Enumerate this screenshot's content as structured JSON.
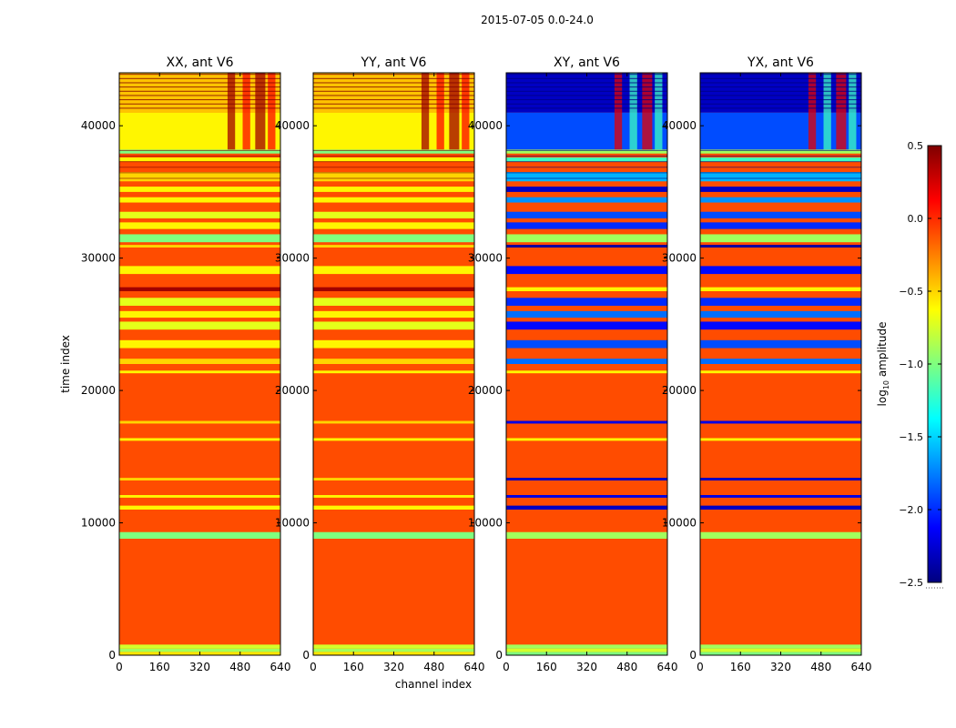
{
  "figure_title": "2015-07-05 0.0-24.0",
  "colors": {
    "background": "#ffffff",
    "base_red_orange": "#ff4500",
    "jet_stops": [
      "#00007f",
      "#0000ff",
      "#007fff",
      "#00ffff",
      "#7fff7f",
      "#ffff00",
      "#ff7f00",
      "#ff0000",
      "#7f0000"
    ]
  },
  "chart_data": {
    "type": "heatmap",
    "panels": [
      {
        "title": "XX, ant V6",
        "kind": "parallel"
      },
      {
        "title": "YY, ant V6",
        "kind": "parallel"
      },
      {
        "title": "XY, ant V6",
        "kind": "cross"
      },
      {
        "title": "YX, ant V6",
        "kind": "cross"
      }
    ],
    "xlabel": "channel index",
    "ylabel": "time index",
    "xlim": [
      0,
      640
    ],
    "ylim": [
      0,
      44000
    ],
    "xticks": [
      0,
      160,
      320,
      480,
      640
    ],
    "yticks": [
      0,
      10000,
      20000,
      30000,
      40000
    ],
    "xtick_labels": [
      "0",
      "160",
      "320",
      "480",
      "640"
    ],
    "ytick_labels": [
      "0",
      "10000",
      "20000",
      "30000",
      "40000"
    ],
    "colorbar": {
      "label_prefix": "log",
      "label_sub": "10",
      "label_suffix": " amplitude",
      "range": [
        -2.5,
        0.5
      ],
      "ticks": [
        -2.5,
        -2.0,
        -1.5,
        -1.0,
        -0.5,
        0.0,
        0.5
      ],
      "tick_labels": [
        "−2.5",
        "−2.0",
        "−1.5",
        "−1.0",
        "−0.5",
        "0.0",
        "0.5"
      ],
      "colormap": "jet"
    },
    "base_value": -0.1,
    "rfi_channel_ranges": [
      [
        430,
        460
      ],
      [
        490,
        520
      ],
      [
        540,
        580
      ],
      [
        590,
        620
      ]
    ],
    "segments": [
      {
        "t0": 0,
        "t1": 250,
        "parallel": -0.55,
        "cross": -1.0
      },
      {
        "t0": 250,
        "t1": 500,
        "parallel": -0.9,
        "cross": -0.75
      },
      {
        "t0": 500,
        "t1": 800,
        "parallel": -0.75,
        "cross": -0.9
      },
      {
        "t0": 8800,
        "t1": 9300,
        "parallel": -1.0,
        "cross": -0.9
      },
      {
        "t0": 11000,
        "t1": 11300,
        "parallel": -0.6,
        "cross": -2.3
      },
      {
        "t0": 11900,
        "t1": 12100,
        "parallel": -0.6,
        "cross": -2.2
      },
      {
        "t0": 13200,
        "t1": 13400,
        "parallel": -0.5,
        "cross": -2.3
      },
      {
        "t0": 16200,
        "t1": 16400,
        "parallel": -0.6,
        "cross": -0.6
      },
      {
        "t0": 17500,
        "t1": 17700,
        "parallel": -0.5,
        "cross": -2.2
      },
      {
        "t0": 21300,
        "t1": 21500,
        "parallel": -0.6,
        "cross": -0.6
      },
      {
        "t0": 22000,
        "t1": 22400,
        "parallel": -0.5,
        "cross": -1.8
      },
      {
        "t0": 23200,
        "t1": 23800,
        "parallel": -0.6,
        "cross": -1.9
      },
      {
        "t0": 24600,
        "t1": 25200,
        "parallel": -0.7,
        "cross": -2.1
      },
      {
        "t0": 25500,
        "t1": 26000,
        "parallel": -0.6,
        "cross": -1.8
      },
      {
        "t0": 26400,
        "t1": 27000,
        "parallel": -0.7,
        "cross": -2.0
      },
      {
        "t0": 27500,
        "t1": 27800,
        "parallel": 0.4,
        "cross": -0.6
      },
      {
        "t0": 28800,
        "t1": 29400,
        "parallel": -0.6,
        "cross": -2.1
      },
      {
        "t0": 30800,
        "t1": 31000,
        "parallel": -0.5,
        "cross": -2.4
      },
      {
        "t0": 31200,
        "t1": 31800,
        "parallel": -1.0,
        "cross": -0.9
      },
      {
        "t0": 32200,
        "t1": 32700,
        "parallel": -0.6,
        "cross": -2.0
      },
      {
        "t0": 33000,
        "t1": 33500,
        "parallel": -0.7,
        "cross": -1.9
      },
      {
        "t0": 34200,
        "t1": 34600,
        "parallel": -0.6,
        "cross": -1.7
      },
      {
        "t0": 35000,
        "t1": 35400,
        "parallel": -0.6,
        "cross": -2.3
      },
      {
        "t0": 35800,
        "t1": 36500,
        "parallel": -0.5,
        "cross": -1.6
      },
      {
        "t0": 37300,
        "t1": 37600,
        "parallel": -0.6,
        "cross": -1.2
      },
      {
        "t0": 37900,
        "t1": 38200,
        "parallel": -1.0,
        "cross": -0.9
      },
      {
        "t0": 38200,
        "t1": 41000,
        "parallel": -0.6,
        "cross": -1.9
      },
      {
        "t0": 41000,
        "t1": 44000,
        "parallel": -0.45,
        "cross": -2.3
      }
    ]
  }
}
